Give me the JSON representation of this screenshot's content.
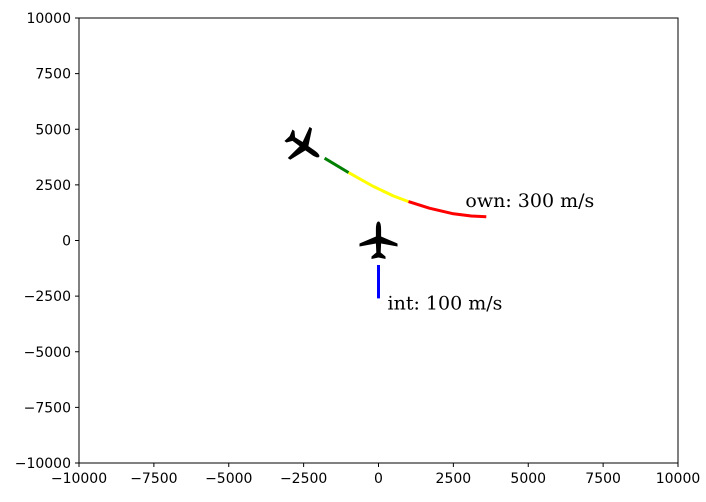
{
  "chart_data": {
    "type": "line",
    "xlim": [
      -10000,
      10000
    ],
    "ylim": [
      -10000,
      10000
    ],
    "xticks": [
      -10000,
      -7500,
      -5000,
      -2500,
      0,
      2500,
      5000,
      7500,
      10000
    ],
    "yticks": [
      -10000,
      -7500,
      -5000,
      -2500,
      0,
      2500,
      5000,
      7500,
      10000
    ],
    "xtick_labels": [
      "−10000",
      "−7500",
      "−5000",
      "−2500",
      "0",
      "2500",
      "5000",
      "7500",
      "10000"
    ],
    "ytick_labels": [
      "−10000",
      "−7500",
      "−5000",
      "−2500",
      "0",
      "2500",
      "5000",
      "7500",
      "10000"
    ],
    "grid": false,
    "series": [
      {
        "color": "#008000",
        "points": [
          [
            -1800,
            3700
          ],
          [
            -1000,
            3050
          ]
        ]
      },
      {
        "color": "#ffff00",
        "points": [
          [
            -1000,
            3050
          ],
          [
            -200,
            2450
          ],
          [
            500,
            2000
          ],
          [
            1000,
            1750
          ]
        ]
      },
      {
        "color": "#ff0000",
        "points": [
          [
            1000,
            1750
          ],
          [
            1700,
            1450
          ],
          [
            2500,
            1200
          ],
          [
            3100,
            1100
          ],
          [
            3600,
            1070
          ]
        ]
      },
      {
        "color": "#0000ff",
        "points": [
          [
            0,
            -1100
          ],
          [
            0,
            -2600
          ]
        ]
      }
    ],
    "aircraft": [
      {
        "icon": "airplane-icon",
        "x": -2500,
        "y": 4250,
        "heading_deg": 125
      },
      {
        "icon": "airplane-icon",
        "x": 0,
        "y": 0,
        "heading_deg": 0
      }
    ],
    "annotations": [
      {
        "text": "own: 300 m/s",
        "x": 2900,
        "y": 1500
      },
      {
        "text": "int: 100 m/s",
        "x": 300,
        "y": -3100
      }
    ]
  }
}
